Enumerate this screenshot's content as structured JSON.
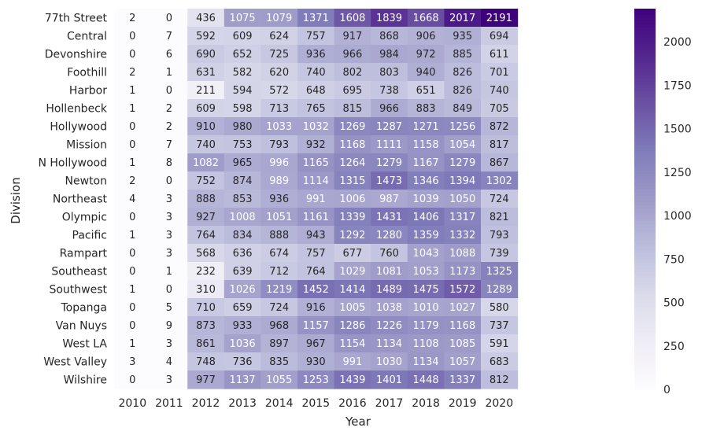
{
  "chart_data": {
    "type": "heatmap",
    "title": "",
    "xlabel": "Year",
    "ylabel": "Division",
    "x": [
      "2010",
      "2011",
      "2012",
      "2013",
      "2014",
      "2015",
      "2016",
      "2017",
      "2018",
      "2019",
      "2020"
    ],
    "y": [
      "77th Street",
      "Central",
      "Devonshire",
      "Foothill",
      "Harbor",
      "Hollenbeck",
      "Hollywood",
      "Mission",
      "N Hollywood",
      "Newton",
      "Northeast",
      "Olympic",
      "Pacific",
      "Rampart",
      "Southeast",
      "Southwest",
      "Topanga",
      "Van Nuys",
      "West LA",
      "West Valley",
      "Wilshire"
    ],
    "values": [
      [
        2,
        0,
        436,
        1075,
        1079,
        1371,
        1608,
        1839,
        1668,
        2017,
        2191
      ],
      [
        0,
        7,
        592,
        609,
        624,
        757,
        917,
        868,
        906,
        935,
        694
      ],
      [
        0,
        6,
        690,
        652,
        725,
        936,
        966,
        984,
        972,
        885,
        611
      ],
      [
        2,
        1,
        631,
        582,
        620,
        740,
        802,
        803,
        940,
        826,
        701
      ],
      [
        1,
        0,
        211,
        594,
        572,
        648,
        695,
        738,
        651,
        826,
        740
      ],
      [
        1,
        2,
        609,
        598,
        713,
        765,
        815,
        966,
        883,
        849,
        705
      ],
      [
        0,
        2,
        910,
        980,
        1033,
        1032,
        1269,
        1287,
        1271,
        1256,
        872
      ],
      [
        0,
        7,
        740,
        753,
        793,
        932,
        1168,
        1111,
        1158,
        1054,
        817
      ],
      [
        1,
        8,
        1082,
        965,
        996,
        1165,
        1264,
        1279,
        1167,
        1279,
        867
      ],
      [
        2,
        0,
        752,
        874,
        989,
        1114,
        1315,
        1473,
        1346,
        1394,
        1302
      ],
      [
        4,
        3,
        888,
        853,
        936,
        991,
        1006,
        987,
        1039,
        1050,
        724
      ],
      [
        0,
        3,
        927,
        1008,
        1051,
        1161,
        1339,
        1431,
        1406,
        1317,
        821
      ],
      [
        1,
        3,
        764,
        834,
        888,
        943,
        1292,
        1280,
        1359,
        1332,
        793
      ],
      [
        0,
        3,
        568,
        636,
        674,
        757,
        677,
        760,
        1043,
        1088,
        739
      ],
      [
        0,
        1,
        232,
        639,
        712,
        764,
        1029,
        1081,
        1053,
        1173,
        1325
      ],
      [
        1,
        0,
        310,
        1026,
        1219,
        1452,
        1414,
        1489,
        1475,
        1572,
        1289
      ],
      [
        0,
        5,
        710,
        659,
        724,
        916,
        1005,
        1038,
        1010,
        1027,
        580
      ],
      [
        0,
        9,
        873,
        933,
        968,
        1157,
        1286,
        1226,
        1179,
        1168,
        737
      ],
      [
        1,
        3,
        861,
        1036,
        897,
        967,
        1154,
        1134,
        1108,
        1085,
        591
      ],
      [
        3,
        4,
        748,
        736,
        835,
        930,
        991,
        1030,
        1134,
        1057,
        683
      ],
      [
        0,
        3,
        977,
        1137,
        1055,
        1253,
        1439,
        1401,
        1448,
        1337,
        812
      ]
    ],
    "colormap": "Purples",
    "vmin": 0,
    "vmax": 2191,
    "colorbar_ticks": [
      0,
      250,
      500,
      750,
      1000,
      1250,
      1500,
      1750,
      2000
    ],
    "annotated": true,
    "grid": false
  }
}
